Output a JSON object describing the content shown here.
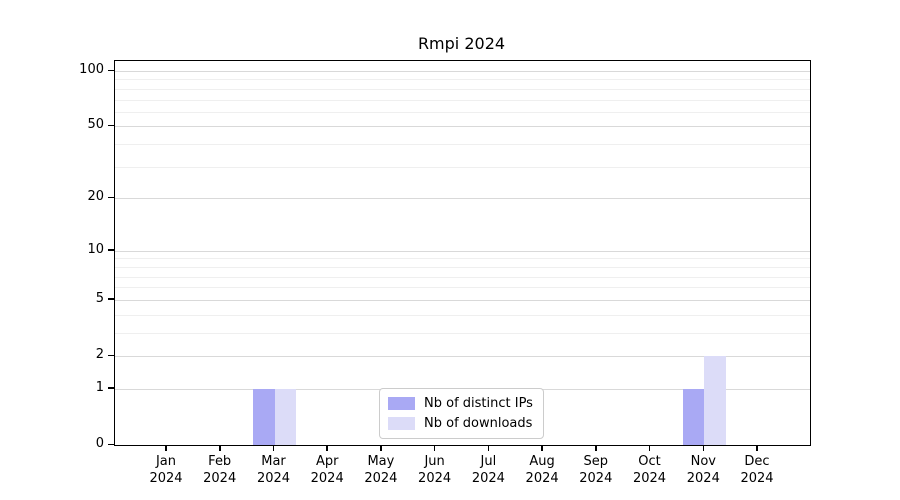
{
  "chart_data": {
    "type": "bar",
    "title": "Rmpi 2024",
    "categories": [
      {
        "month": "Jan",
        "year": "2024"
      },
      {
        "month": "Feb",
        "year": "2024"
      },
      {
        "month": "Mar",
        "year": "2024"
      },
      {
        "month": "Apr",
        "year": "2024"
      },
      {
        "month": "May",
        "year": "2024"
      },
      {
        "month": "Jun",
        "year": "2024"
      },
      {
        "month": "Jul",
        "year": "2024"
      },
      {
        "month": "Aug",
        "year": "2024"
      },
      {
        "month": "Sep",
        "year": "2024"
      },
      {
        "month": "Oct",
        "year": "2024"
      },
      {
        "month": "Nov",
        "year": "2024"
      },
      {
        "month": "Dec",
        "year": "2024"
      }
    ],
    "series": [
      {
        "name": "Nb of distinct IPs",
        "color": "#a9a9f4",
        "values": [
          0,
          0,
          1,
          0,
          0,
          0,
          0,
          0,
          0,
          0,
          1,
          0
        ]
      },
      {
        "name": "Nb of downloads",
        "color": "#dcdcf8",
        "values": [
          0,
          0,
          1,
          0,
          0,
          0,
          0,
          0,
          0,
          0,
          2,
          0
        ]
      }
    ],
    "yscale": "log1p",
    "ylim": [
      0,
      113
    ],
    "yticks": [
      0,
      1,
      2,
      5,
      10,
      20,
      50,
      100
    ],
    "minor_gridlines": [
      3,
      4,
      6,
      7,
      8,
      9,
      30,
      40,
      60,
      70,
      80,
      90
    ],
    "grid": "horizontal",
    "legend_position": "lower center"
  },
  "colors": {
    "major_grid": "#d9d9d9",
    "minor_grid": "#efefef",
    "spine": "#000000",
    "text": "#000000",
    "legend_border": "#cccccc",
    "background": "#ffffff"
  }
}
